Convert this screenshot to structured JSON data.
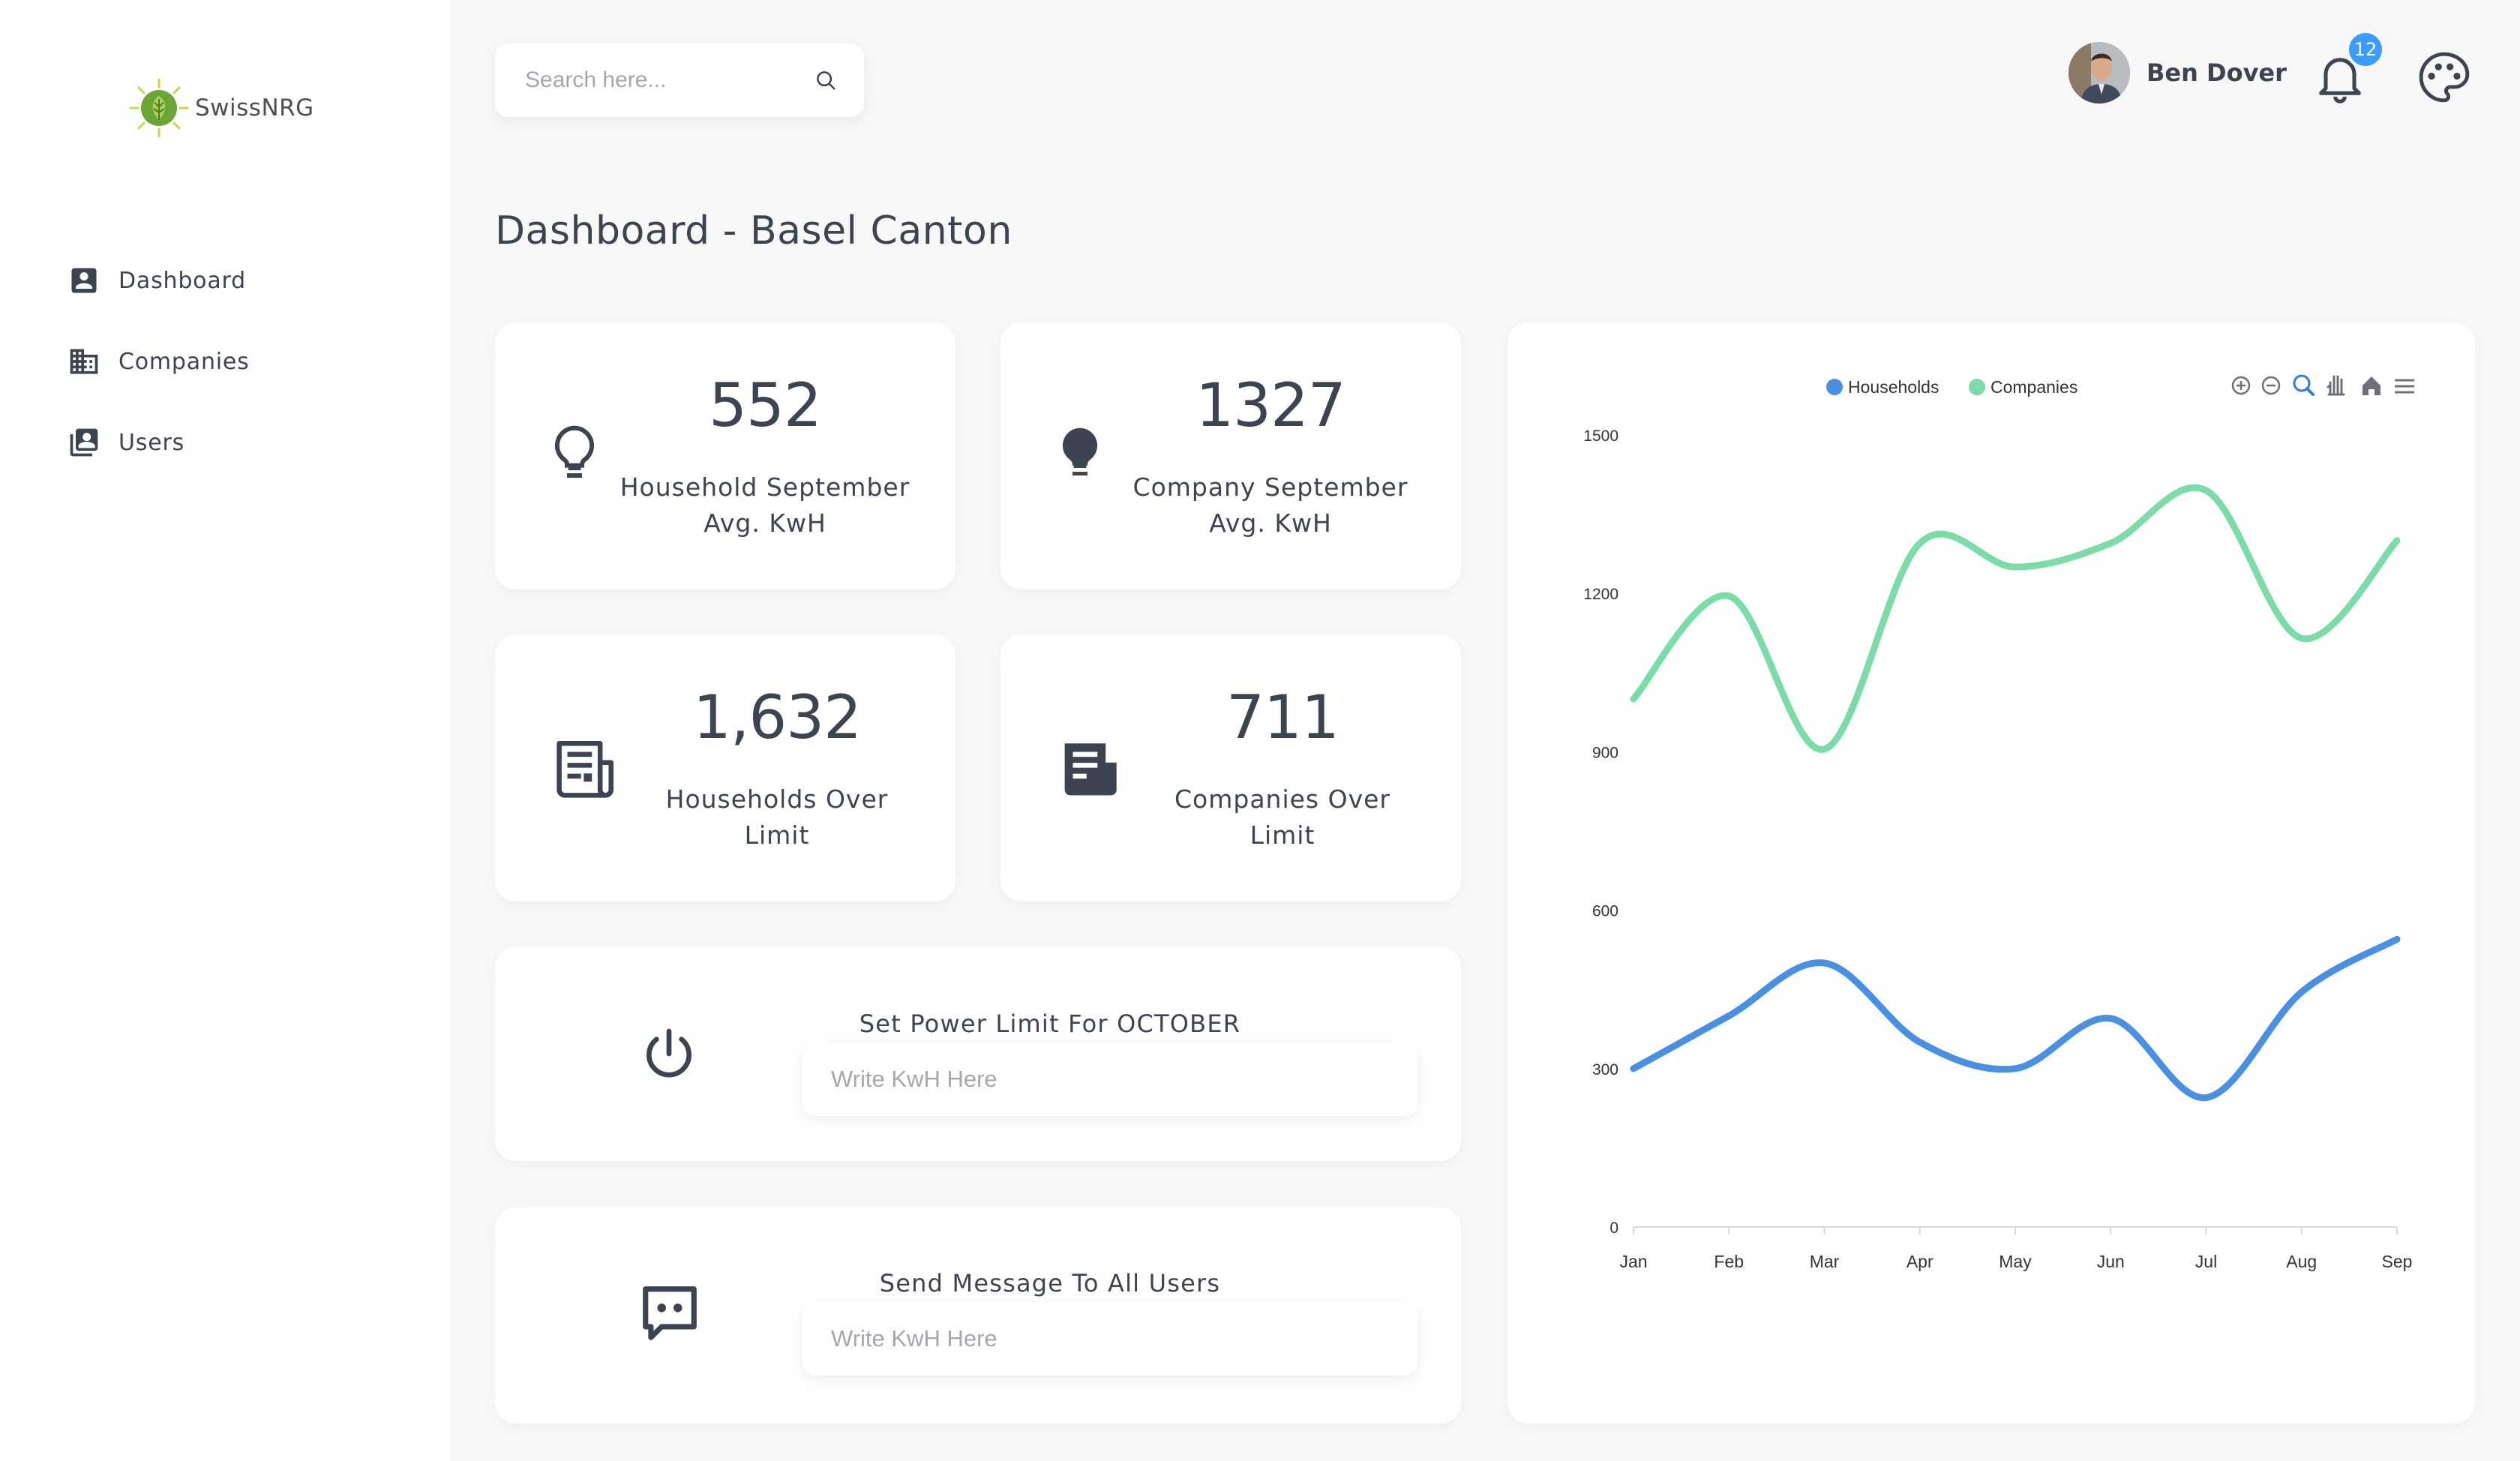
{
  "app": {
    "name": "SwissNRG"
  },
  "sidebar": {
    "items": [
      {
        "label": "Dashboard",
        "icon": "account-box-icon"
      },
      {
        "label": "Companies",
        "icon": "building-icon"
      },
      {
        "label": "Users",
        "icon": "user-list-icon"
      }
    ]
  },
  "header": {
    "search_placeholder": "Search here...",
    "user_name": "Ben Dover",
    "notification_count": "12"
  },
  "page": {
    "title": "Dashboard - Basel Canton"
  },
  "stats": [
    {
      "value": "552",
      "label": "Household September\nAvg. KwH",
      "icon": "lightbulb-outline-icon"
    },
    {
      "value": "1327",
      "label": "Company September\nAvg. KwH",
      "icon": "lightbulb-filled-icon"
    },
    {
      "value": "1,632",
      "label": "Households Over\nLimit",
      "icon": "newspaper-outline-icon"
    },
    {
      "value": "711",
      "label": "Companies Over\nLimit",
      "icon": "newspaper-filled-icon"
    }
  ],
  "forms": {
    "power_limit": {
      "title": "Set Power Limit For OCTOBER",
      "placeholder": "Write KwH Here",
      "icon": "power-icon"
    },
    "message": {
      "title": "Send Message To All Users",
      "placeholder": "Write KwH Here",
      "icon": "chat-icon"
    }
  },
  "chart_data": {
    "type": "line",
    "categories": [
      "Jan",
      "Feb",
      "Mar",
      "Apr",
      "May",
      "Jun",
      "Jul",
      "Aug",
      "Sep"
    ],
    "series": [
      {
        "name": "Households",
        "color": "#4a90e2",
        "values": [
          300,
          400,
          500,
          350,
          300,
          395,
          245,
          445,
          545
        ]
      },
      {
        "name": "Companies",
        "color": "#7bdca8",
        "values": [
          1000,
          1195,
          905,
          1295,
          1250,
          1295,
          1395,
          1115,
          1300
        ]
      }
    ],
    "yticks": [
      "0",
      "300",
      "600",
      "900",
      "1200",
      "1500"
    ],
    "ylim": [
      0,
      1500
    ],
    "legend_position": "top",
    "toolbar_icons": [
      "zoom-in-icon",
      "zoom-out-icon",
      "zoom-select-icon",
      "pan-hand-icon",
      "home-reset-icon",
      "menu-icon"
    ],
    "grid": false
  }
}
